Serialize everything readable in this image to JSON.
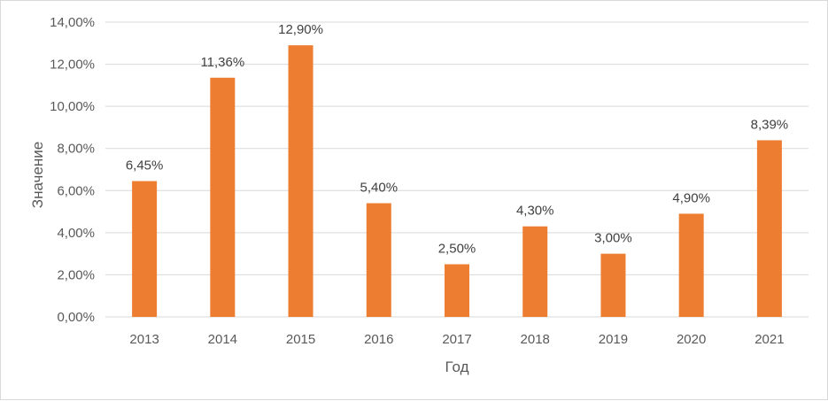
{
  "chart_data": {
    "type": "bar",
    "title": "",
    "xlabel": "Год",
    "ylabel": "Значение",
    "categories": [
      "2013",
      "2014",
      "2015",
      "2016",
      "2017",
      "2018",
      "2019",
      "2020",
      "2021"
    ],
    "values": [
      6.45,
      11.36,
      12.9,
      5.4,
      2.5,
      4.3,
      3.0,
      4.9,
      8.39
    ],
    "data_labels": [
      "6,45%",
      "11,36%",
      "12,90%",
      "5,40%",
      "2,50%",
      "4,30%",
      "3,00%",
      "4,90%",
      "8,39%"
    ],
    "ylim": [
      0,
      14
    ],
    "yticks": [
      0,
      2,
      4,
      6,
      8,
      10,
      12,
      14
    ],
    "ytick_labels": [
      "0,00%",
      "2,00%",
      "4,00%",
      "6,00%",
      "8,00%",
      "10,00%",
      "12,00%",
      "14,00%"
    ],
    "grid": true,
    "legend": "none",
    "colors": {
      "bar": "#ED7D31",
      "grid": "#D9D9D9",
      "text": "#595959"
    }
  }
}
